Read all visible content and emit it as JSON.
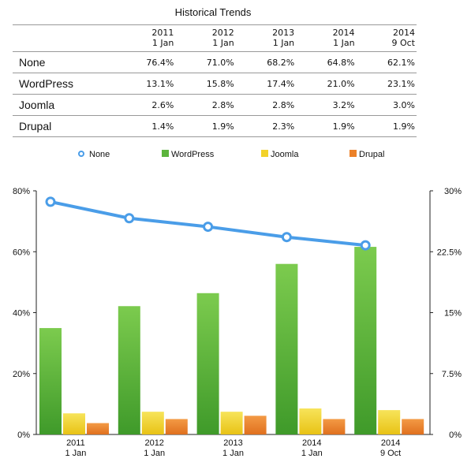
{
  "table": {
    "title": "Historical Trends",
    "columns": [
      {
        "line1": "2011",
        "line2": "1 Jan"
      },
      {
        "line1": "2012",
        "line2": "1 Jan"
      },
      {
        "line1": "2013",
        "line2": "1 Jan"
      },
      {
        "line1": "2014",
        "line2": "1 Jan"
      },
      {
        "line1": "2014",
        "line2": "9 Oct"
      }
    ],
    "rows": [
      {
        "label": "None",
        "values": [
          "76.4%",
          "71.0%",
          "68.2%",
          "64.8%",
          "62.1%"
        ]
      },
      {
        "label": "WordPress",
        "values": [
          "13.1%",
          "15.8%",
          "17.4%",
          "21.0%",
          "23.1%"
        ]
      },
      {
        "label": "Joomla",
        "values": [
          "2.6%",
          "2.8%",
          "2.8%",
          "3.2%",
          "3.0%"
        ]
      },
      {
        "label": "Drupal",
        "values": [
          "1.4%",
          "1.9%",
          "2.3%",
          "1.9%",
          "1.9%"
        ]
      }
    ]
  },
  "chart_data": {
    "type": "bar",
    "categories": [
      [
        "2011",
        "1 Jan"
      ],
      [
        "2012",
        "1 Jan"
      ],
      [
        "2013",
        "1 Jan"
      ],
      [
        "2014",
        "1 Jan"
      ],
      [
        "2014",
        "9 Oct"
      ]
    ],
    "line_series": {
      "name": "None",
      "values": [
        76.4,
        71.0,
        68.2,
        64.8,
        62.1
      ],
      "axis": "left",
      "color": "#4a9de8"
    },
    "bar_series": [
      {
        "name": "WordPress",
        "values": [
          13.1,
          15.8,
          17.4,
          21.0,
          23.1
        ],
        "axis": "right",
        "color": "#5cb43c"
      },
      {
        "name": "Joomla",
        "values": [
          2.6,
          2.8,
          2.8,
          3.2,
          3.0
        ],
        "axis": "right",
        "color": "#f2d22a"
      },
      {
        "name": "Drupal",
        "values": [
          1.4,
          1.9,
          2.3,
          1.9,
          1.9
        ],
        "axis": "right",
        "color": "#ec8128"
      }
    ],
    "y_left": {
      "ticks": [
        0,
        20,
        40,
        60,
        80
      ],
      "tick_labels": [
        "0%",
        "20%",
        "40%",
        "60%",
        "80%"
      ],
      "ylim": [
        0,
        80
      ]
    },
    "y_right": {
      "ticks": [
        0,
        7.5,
        15,
        22.5,
        30
      ],
      "tick_labels": [
        "0%",
        "7.5%",
        "15%",
        "22.5%",
        "30%"
      ],
      "ylim": [
        0,
        30
      ]
    },
    "legend_position": "top",
    "grid": false
  }
}
